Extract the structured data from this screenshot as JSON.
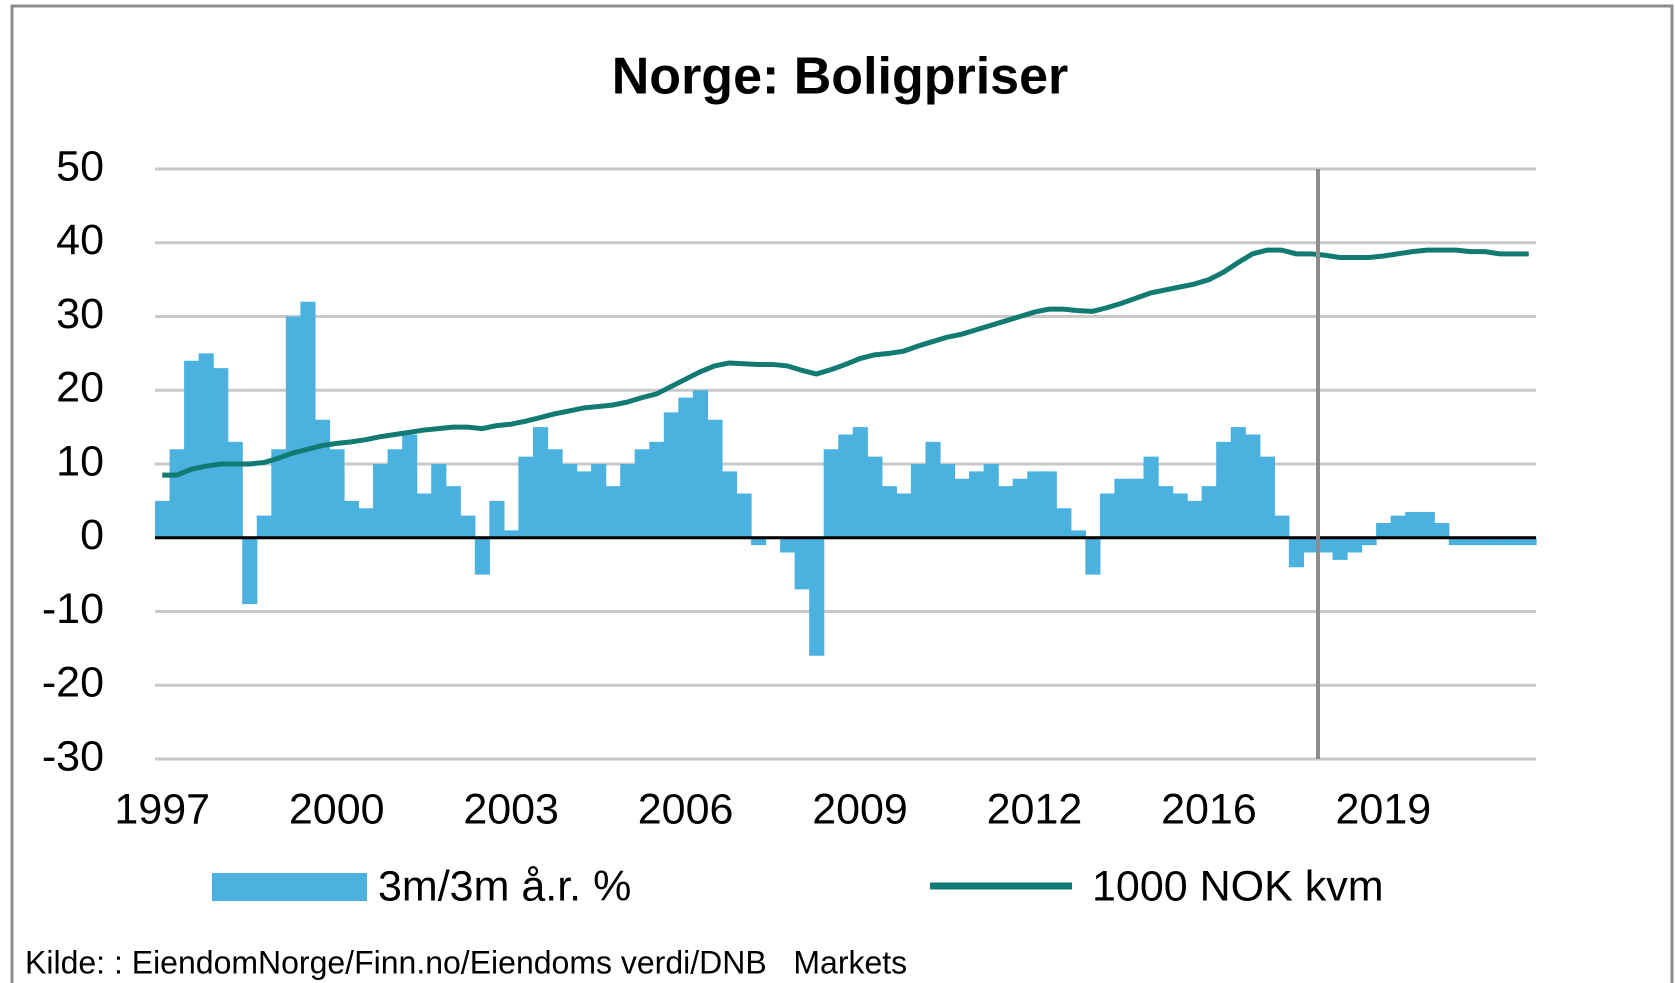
{
  "chart_data": {
    "type": "bar-line",
    "title": "Norge: Boligpriser",
    "source": "Kilde: : EiendomNorge/Finn.no/Eiendoms verdi/DNB   Markets",
    "categories": [
      "1997",
      null,
      null,
      null,
      null,
      null,
      null,
      null,
      null,
      null,
      null,
      null,
      "2000",
      null,
      null,
      null,
      null,
      null,
      null,
      null,
      null,
      null,
      null,
      null,
      "2003",
      null,
      null,
      null,
      null,
      null,
      null,
      null,
      null,
      null,
      null,
      null,
      "2006",
      null,
      null,
      null,
      null,
      null,
      null,
      null,
      null,
      null,
      null,
      null,
      "2009",
      null,
      null,
      null,
      null,
      null,
      null,
      null,
      null,
      null,
      null,
      null,
      "2012",
      null,
      null,
      null,
      null,
      null,
      null,
      null,
      null,
      null,
      null,
      null,
      "2016",
      null,
      null,
      null,
      null,
      null,
      null,
      null,
      null,
      null,
      null,
      null,
      "2019",
      null,
      null,
      null,
      null,
      null,
      null,
      null,
      null,
      null,
      null
    ],
    "series": [
      {
        "name": "3m/3m å.r. %",
        "type": "bar",
        "color": "#4bb2e0",
        "values": [
          5,
          12,
          24,
          25,
          23,
          13,
          -9,
          3,
          12,
          30,
          32,
          16,
          12,
          5,
          4,
          10,
          12,
          14,
          6,
          10,
          7,
          3,
          -5,
          5,
          1,
          11,
          15,
          12,
          10,
          9,
          10,
          7,
          10,
          12,
          13,
          17,
          19,
          20,
          16,
          9,
          6,
          -1,
          0,
          -2,
          -7,
          -16,
          12,
          14,
          15,
          11,
          7,
          6,
          10,
          13,
          10,
          8,
          9,
          10,
          7,
          8,
          9,
          9,
          4,
          1,
          -5,
          6,
          8,
          8,
          11,
          7,
          6,
          5,
          7,
          13,
          15,
          14,
          11,
          3,
          -4,
          -2,
          -2,
          -3,
          -2,
          -1,
          2,
          3,
          3.5,
          3.5,
          2,
          -1,
          -1,
          -1,
          -1,
          -1,
          -1
        ]
      },
      {
        "name": "1000 NOK kvm",
        "type": "line",
        "color": "#117a72",
        "values": [
          8.5,
          8.5,
          9.3,
          9.7,
          10,
          10,
          10,
          10.2,
          10.8,
          11.5,
          12,
          12.5,
          12.8,
          13,
          13.3,
          13.7,
          14,
          14.3,
          14.6,
          14.8,
          15,
          15,
          14.8,
          15.2,
          15.4,
          15.8,
          16.3,
          16.8,
          17.2,
          17.6,
          17.8,
          18,
          18.4,
          19,
          19.5,
          20.5,
          21.5,
          22.5,
          23.3,
          23.7,
          23.6,
          23.5,
          23.5,
          23.3,
          22.7,
          22.2,
          22.8,
          23.5,
          24.3,
          24.8,
          25,
          25.3,
          26,
          26.6,
          27.2,
          27.6,
          28.2,
          28.8,
          29.4,
          30,
          30.6,
          31,
          31,
          30.8,
          30.7,
          31.2,
          31.8,
          32.5,
          33.2,
          33.6,
          34,
          34.4,
          35,
          36,
          37.3,
          38.5,
          39,
          39,
          38.5,
          38.5,
          38.3,
          38,
          38,
          38,
          38.2,
          38.5,
          38.8,
          39,
          39,
          39,
          38.8,
          38.8,
          38.5,
          38.5,
          38.5
        ]
      }
    ],
    "ylim": [
      -30,
      50
    ],
    "yticks": [
      -30,
      -20,
      -10,
      0,
      10,
      20,
      30,
      40,
      50
    ],
    "grid": true
  }
}
